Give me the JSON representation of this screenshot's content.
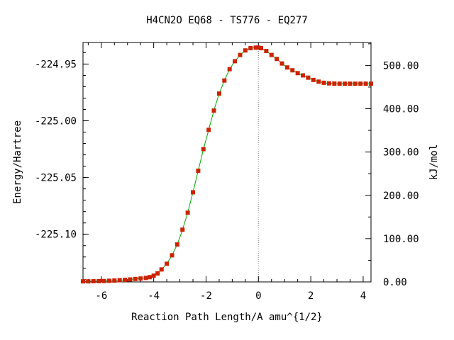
{
  "chart_data": {
    "type": "line",
    "title": "H4CN2O   EQ68 - TS776 - EQ277",
    "xlabel": "Reaction Path Length/A amu^{1/2}",
    "ylabel": "Energy/Hartree",
    "y2label": "kJ/mol",
    "xlim": [
      -6.7,
      4.3
    ],
    "ylim": [
      -225.142,
      -224.931
    ],
    "y2lim": [
      0.0,
      553.0
    ],
    "x_ticks": [
      -6,
      -4,
      -2,
      0,
      2,
      4
    ],
    "x_tick_labels": [
      "-6",
      "-4",
      "-2",
      "0",
      "2",
      "4"
    ],
    "y_ticks": [
      -224.95,
      -225.0,
      -225.05,
      -225.1
    ],
    "y_tick_labels": [
      "-224.95",
      "-225.00",
      "-225.05",
      "-225.10"
    ],
    "y2_ticks": [
      0,
      100,
      200,
      300,
      400,
      500
    ],
    "y2_tick_labels": [
      "0.00",
      "100.00",
      "200.00",
      "300.00",
      "400.00",
      "500.00"
    ],
    "ts_marker_x": 0,
    "line_color": "#00aa00",
    "marker_color": "#cc2200",
    "ts_line_color": "#888888",
    "series": [
      {
        "x": [
          -6.7,
          -6.5,
          -6.3,
          -6.1,
          -5.9,
          -5.7,
          -5.5,
          -5.3,
          -5.1,
          -4.9,
          -4.7,
          -4.5,
          -4.3,
          -4.15,
          -4.0,
          -3.85,
          -3.7,
          -3.5,
          -3.3,
          -3.1,
          -2.9,
          -2.7,
          -2.5,
          -2.3,
          -2.1,
          -1.9,
          -1.7,
          -1.5,
          -1.3,
          -1.1,
          -0.9,
          -0.7,
          -0.5,
          -0.3,
          -0.1,
          0.0,
          0.1,
          0.3,
          0.5,
          0.7,
          0.9,
          1.1,
          1.3,
          1.5,
          1.7,
          1.9,
          2.1,
          2.3,
          2.5,
          2.7,
          2.9,
          3.1,
          3.3,
          3.5,
          3.7,
          3.9,
          4.1,
          4.3
        ],
        "y": [
          -225.1415,
          -225.1415,
          -225.1414,
          -225.1413,
          -225.1412,
          -225.141,
          -225.1408,
          -225.1405,
          -225.1402,
          -225.1398,
          -225.1394,
          -225.139,
          -225.1385,
          -225.1378,
          -225.1365,
          -225.1345,
          -225.131,
          -225.126,
          -225.1185,
          -225.109,
          -225.096,
          -225.081,
          -225.063,
          -225.044,
          -225.025,
          -225.008,
          -224.991,
          -224.976,
          -224.9645,
          -224.9545,
          -224.9475,
          -224.942,
          -224.938,
          -224.936,
          -224.9355,
          -224.9355,
          -224.936,
          -224.9385,
          -224.942,
          -224.9455,
          -224.9495,
          -224.953,
          -224.9555,
          -224.958,
          -224.96,
          -224.962,
          -224.964,
          -224.9655,
          -224.9665,
          -224.967,
          -224.9672,
          -224.9673,
          -224.9673,
          -224.9673,
          -224.9673,
          -224.9673,
          -224.9673,
          -224.9673
        ]
      }
    ]
  }
}
